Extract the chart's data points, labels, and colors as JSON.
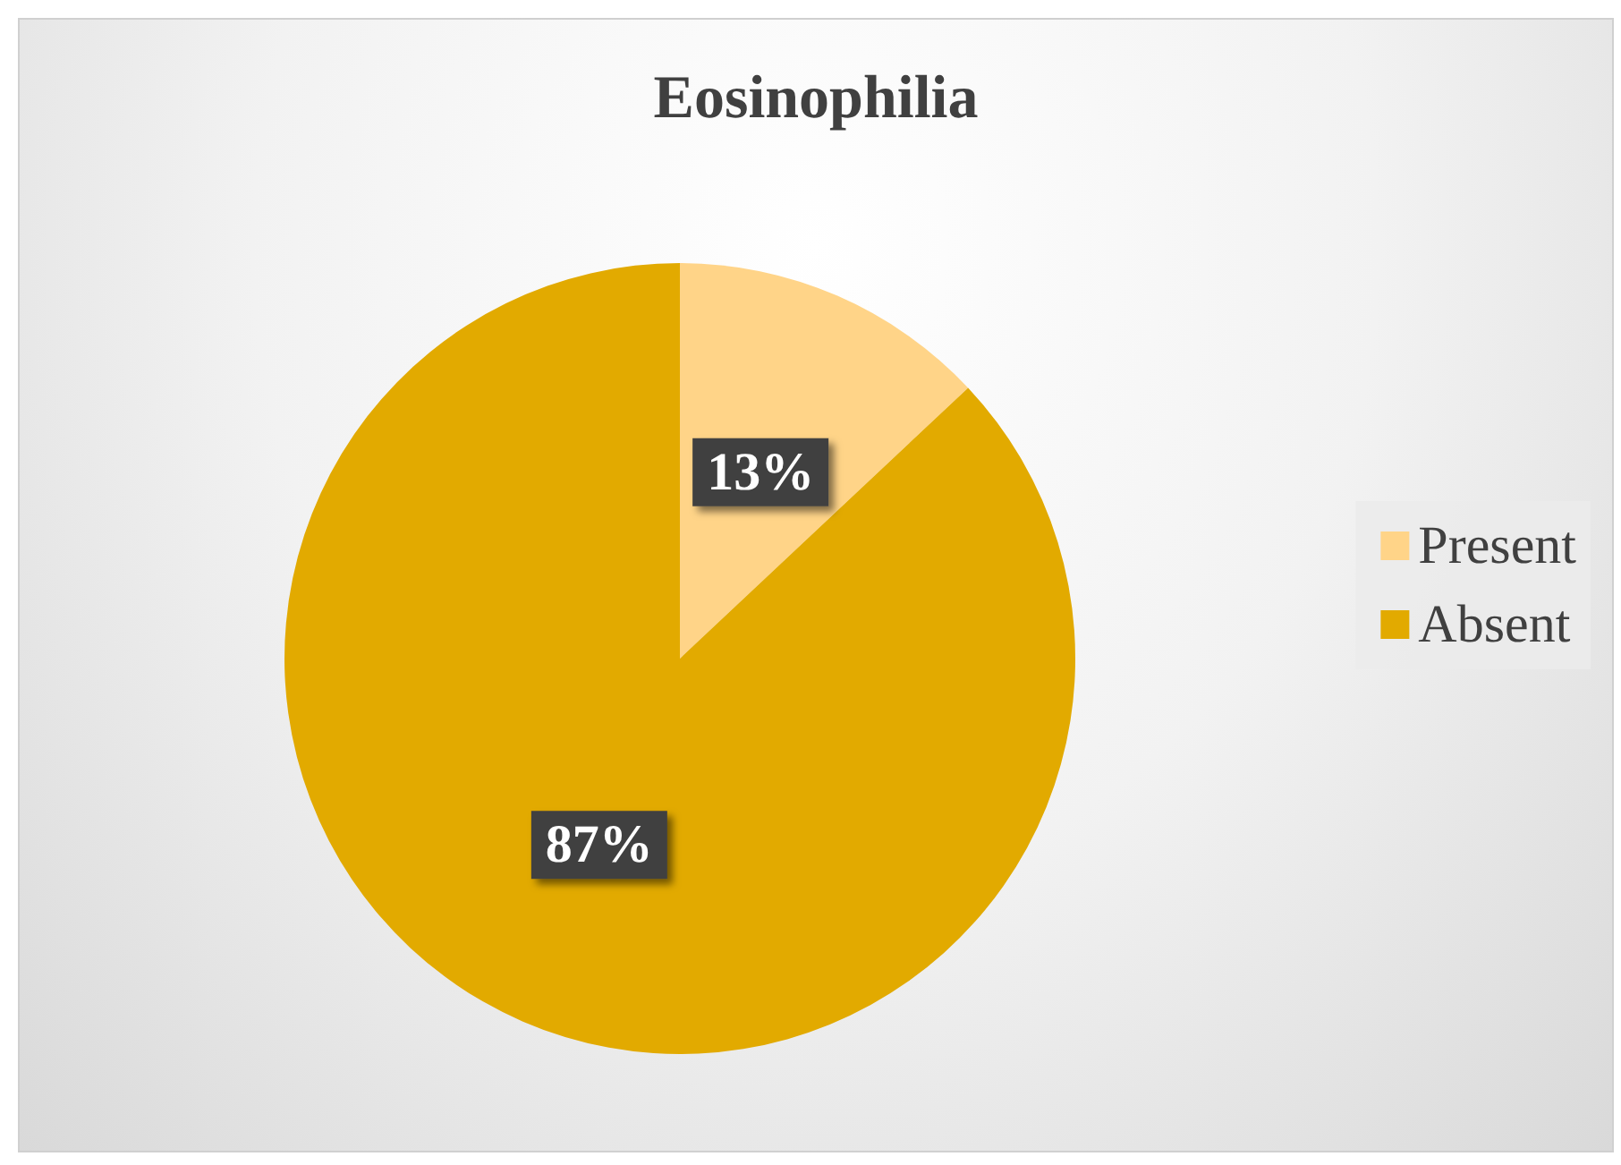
{
  "chart_data": {
    "type": "pie",
    "title": "Eosinophilia",
    "categories": [
      "Present",
      "Absent"
    ],
    "values": [
      13,
      87
    ],
    "colors": [
      "#ffd488",
      "#e2aa00"
    ],
    "value_labels": [
      "13%",
      "87%"
    ],
    "legend": "right"
  }
}
